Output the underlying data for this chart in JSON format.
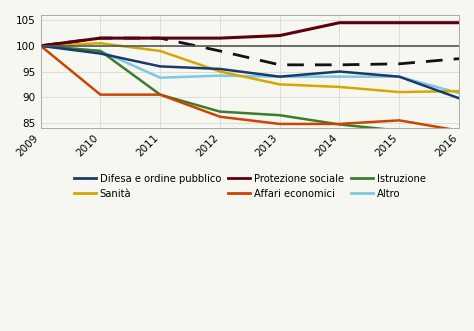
{
  "years": [
    2009,
    2010,
    2011,
    2012,
    2013,
    2014,
    2015,
    2016
  ],
  "difesa": [
    100,
    98.5,
    96.0,
    95.5,
    94.0,
    95.0,
    94.0,
    89.8
  ],
  "sanita": [
    100,
    100.5,
    99.0,
    95.0,
    92.5,
    92.0,
    91.0,
    91.2
  ],
  "protezione_sociale": [
    100,
    101.5,
    101.5,
    101.5,
    102.0,
    104.5,
    104.5,
    104.5
  ],
  "affari_economici": [
    100,
    90.5,
    90.5,
    86.2,
    84.8,
    84.8,
    85.5,
    83.5
  ],
  "istruzione": [
    100,
    99.0,
    90.5,
    87.2,
    86.5,
    84.7,
    83.5,
    83.3
  ],
  "altro": [
    100,
    99.0,
    93.8,
    94.2,
    94.0,
    94.0,
    94.0,
    90.8
  ],
  "dashed": [
    100,
    101.5,
    101.5,
    99.0,
    96.3,
    96.3,
    96.5,
    97.5
  ],
  "color_difesa": "#1a3a6b",
  "color_sanita": "#d4a800",
  "color_protezione": "#5c0010",
  "color_affari": "#cc4400",
  "color_istruzione": "#3a7d2c",
  "color_altro": "#7ec8e3",
  "color_dashed": "#111111",
  "hline_color": "#555555",
  "grid_color": "#dddddd",
  "bg_color": "#f7f7f2",
  "hline_y": 100,
  "ylim": [
    84,
    106
  ],
  "yticks": [
    85,
    90,
    95,
    100,
    105
  ],
  "legend_row1": [
    "Difesa e ordine pubblico",
    "Sanità",
    "Protezione sociale"
  ],
  "legend_row2": [
    "Affari economici",
    "Istruzione",
    "Altro"
  ]
}
